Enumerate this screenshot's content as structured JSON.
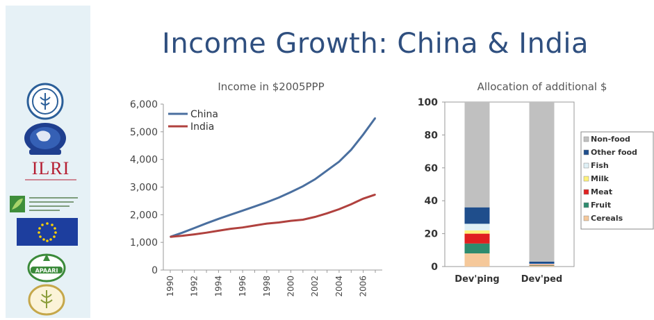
{
  "slide": {
    "title": "Income Growth: China & India",
    "page_number": "",
    "logos": [
      {
        "name": "fao-logo",
        "icon": "fao-emblem"
      },
      {
        "name": "cgiar-globe-logo",
        "icon": "globe-emblem"
      },
      {
        "name": "ilri-logo",
        "text": "ILRI"
      },
      {
        "name": "partner-small-logo",
        "icon": "green-leaf"
      },
      {
        "name": "eu-flag-logo",
        "icon": "eu-flag"
      },
      {
        "name": "apaari-logo",
        "text": "APAARI"
      },
      {
        "name": "partner-round-logo",
        "icon": "grain-emblem"
      }
    ]
  },
  "chart_data": [
    {
      "type": "line",
      "title": "Income in $2005PPP",
      "x": [
        1990,
        1991,
        1992,
        1993,
        1994,
        1995,
        1996,
        1997,
        1998,
        1999,
        2000,
        2001,
        2002,
        2003,
        2004,
        2005,
        2006,
        2007
      ],
      "x_tick_labels": [
        "1990",
        "1992",
        "1994",
        "1996",
        "1998",
        "2000",
        "2002",
        "2004",
        "2006"
      ],
      "ylim": [
        0,
        6000
      ],
      "y_tick_labels": [
        "0",
        "1,000",
        "2,000",
        "3,000",
        "4,000",
        "5,000",
        "6,000"
      ],
      "series": [
        {
          "name": "China",
          "color": "#4a6f9f",
          "values": [
            1200,
            1350,
            1520,
            1690,
            1850,
            2000,
            2150,
            2300,
            2450,
            2620,
            2820,
            3030,
            3280,
            3600,
            3920,
            4350,
            4900,
            5500
          ]
        },
        {
          "name": "India",
          "color": "#b0413e",
          "values": [
            1200,
            1240,
            1290,
            1350,
            1420,
            1490,
            1540,
            1610,
            1680,
            1720,
            1780,
            1820,
            1920,
            2050,
            2200,
            2380,
            2580,
            2730
          ]
        }
      ],
      "legend": "top-left"
    },
    {
      "type": "bar",
      "stacked": true,
      "title": "Allocation of additional $",
      "categories": [
        "Dev'ping",
        "Dev'ped"
      ],
      "ylim": [
        0,
        100
      ],
      "y_tick_labels": [
        "0",
        "20",
        "40",
        "60",
        "80",
        "100"
      ],
      "series": [
        {
          "name": "Cereals",
          "color": "#f5c89a",
          "values": [
            8,
            0.5
          ]
        },
        {
          "name": "Fruit",
          "color": "#2e8b6e",
          "values": [
            6,
            0.3
          ]
        },
        {
          "name": "Meat",
          "color": "#e02020",
          "values": [
            6,
            0.3
          ]
        },
        {
          "name": "Milk",
          "color": "#fff27a",
          "values": [
            2,
            0.2
          ]
        },
        {
          "name": "Fish",
          "color": "#dff0f6",
          "values": [
            4,
            0.4
          ]
        },
        {
          "name": "Other food",
          "color": "#1f4e8c",
          "values": [
            10,
            1.3
          ]
        },
        {
          "name": "Non-food",
          "color": "#c0c0c0",
          "values": [
            64,
            97
          ]
        }
      ],
      "legend_order": [
        "Non-food",
        "Other food",
        "Fish",
        "Milk",
        "Meat",
        "Fruit",
        "Cereals"
      ],
      "legend": "right"
    }
  ]
}
